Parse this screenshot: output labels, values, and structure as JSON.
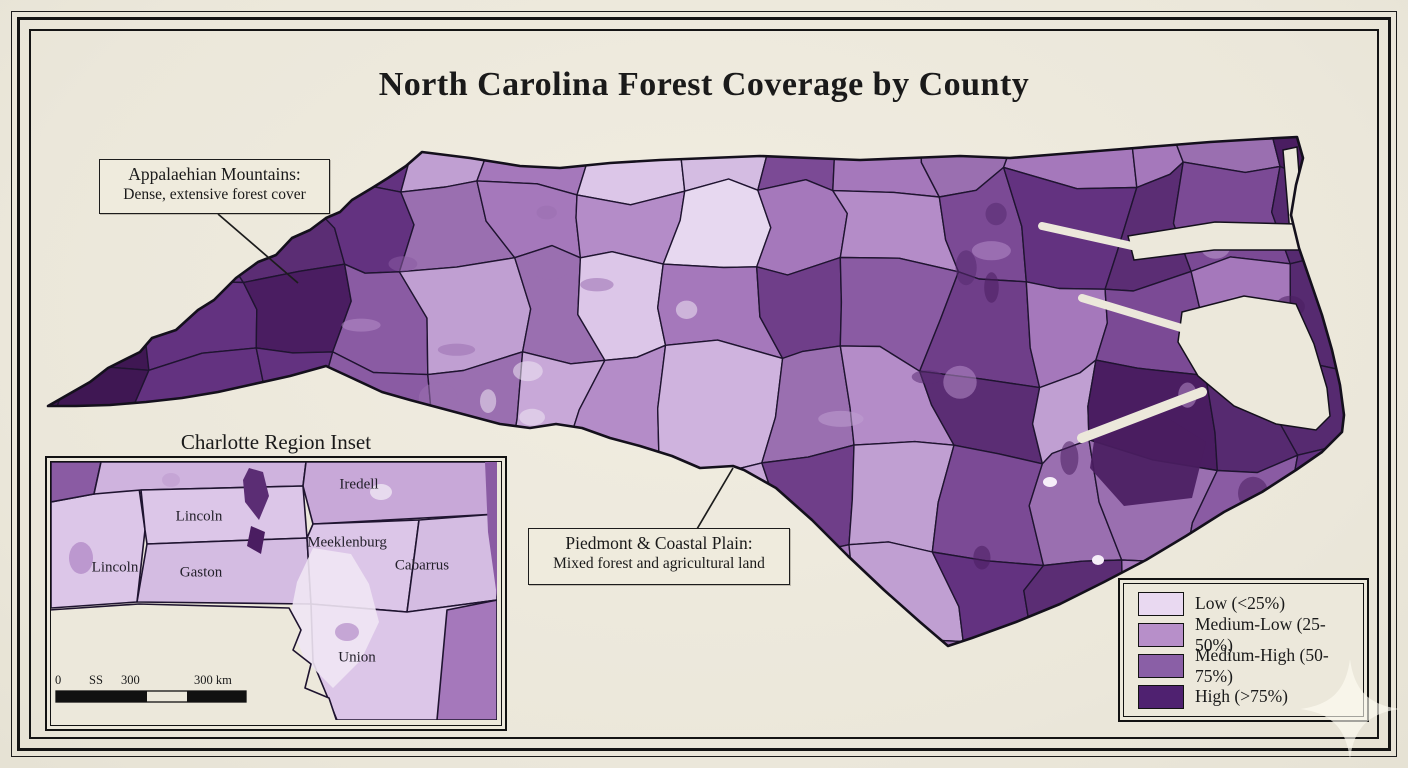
{
  "page": {
    "title": "North Carolina Forest Coverage by County",
    "background": "#ede9dd",
    "frame_color": "#141414"
  },
  "annotations": {
    "appalachian": {
      "line1": "Appalaehian Mountains:",
      "line2": "Dense, extensive forest cover"
    },
    "piedmont": {
      "line1": "Piedmont & Coastal Plain:",
      "line2": "Mixed forest and agricultural land"
    }
  },
  "inset": {
    "title": "Charlotte Region Inset",
    "labels": [
      "Iredell",
      "Lincoln",
      "Meeklenburg",
      "Cabarrus",
      "Lincoln",
      "Gaston",
      "Union"
    ],
    "scale": [
      "0",
      "SS",
      "300",
      "300 km"
    ]
  },
  "legend": {
    "items": [
      {
        "label": "Low (<25%)",
        "color": "#e9d9f1"
      },
      {
        "label": "Medium-Low (25-50%)",
        "color": "#b78fc9"
      },
      {
        "label": "Medium-High (50-75%)",
        "color": "#8a5fa6"
      },
      {
        "label": "High (>75%)",
        "color": "#4f2170"
      }
    ]
  },
  "map": {
    "palette": {
      "darkest": "#3f1753",
      "dark": [
        "#4a1d61",
        "#562a70",
        "#633280",
        "#5b2d74"
      ],
      "medium": [
        "#8a5ba3",
        "#7b4a95",
        "#6f3e89",
        "#9a6fb0"
      ],
      "medium_light": [
        "#b48cc8",
        "#a578bb",
        "#c09fd2"
      ],
      "light": [
        "#dcc6e8",
        "#cfb3de",
        "#e7d8f0",
        "#d4bce2",
        "#c8a8d8"
      ],
      "near_white": "#efe6f4",
      "water": "#ece8db",
      "border": "#1f1430"
    }
  }
}
